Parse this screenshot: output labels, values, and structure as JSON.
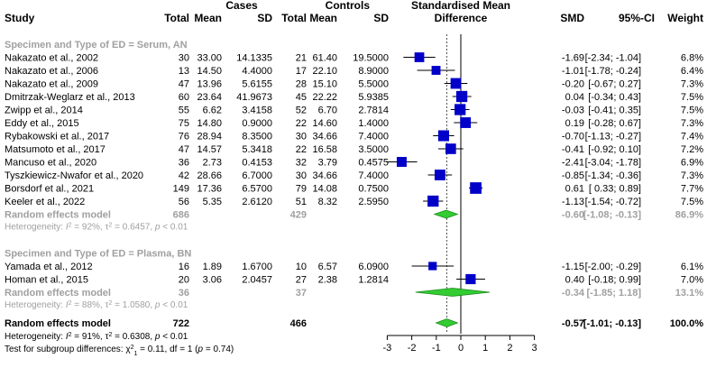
{
  "chart_data": {
    "type": "forest",
    "title": "",
    "xlim": [
      -3,
      3
    ],
    "xticks": [
      "-3",
      "-2",
      "-1",
      "0",
      "1",
      "2",
      "3"
    ],
    "overall_reference": -0.57,
    "header": {
      "cases": "Cases",
      "controls": "Controls",
      "smd_top": "Standardised Mean",
      "smd_bottom": "Difference",
      "study": "Study",
      "total": "Total",
      "mean": "Mean",
      "sd": "SD",
      "smd": "SMD",
      "ci": "95%-CI",
      "weight": "Weight"
    },
    "groups": [
      {
        "label": "Specimen and Type of ED = Serum, AN",
        "studies": [
          {
            "study": "Nakazato et al., 2002",
            "n1": "30",
            "m1": "33.00",
            "sd1": "14.1335",
            "n2": "21",
            "m2": "61.40",
            "sd2": "19.5000",
            "smd_text": "-1.69",
            "ci_text": "[-2.34; -1.04]",
            "weight": "6.8%",
            "smd": -1.69,
            "lo": -2.34,
            "hi": -1.04,
            "w": 6.8
          },
          {
            "study": "Nakazato et al., 2006",
            "n1": "13",
            "m1": "14.50",
            "sd1": "4.4000",
            "n2": "17",
            "m2": "22.10",
            "sd2": "8.9000",
            "smd_text": "-1.01",
            "ci_text": "[-1.78; -0.24]",
            "weight": "6.4%",
            "smd": -1.01,
            "lo": -1.78,
            "hi": -0.24,
            "w": 6.4
          },
          {
            "study": "Nakazato et al., 2009",
            "n1": "47",
            "m1": "13.96",
            "sd1": "5.6155",
            "n2": "28",
            "m2": "15.10",
            "sd2": "5.5000",
            "smd_text": "-0.20",
            "ci_text": "[-0.67; 0.27]",
            "weight": "7.3%",
            "smd": -0.2,
            "lo": -0.67,
            "hi": 0.27,
            "w": 7.3
          },
          {
            "study": "Dmitrzak-Weglarz et al., 2013",
            "n1": "60",
            "m1": "23.64",
            "sd1": "41.9673",
            "n2": "45",
            "m2": "22.22",
            "sd2": "5.9385",
            "smd_text": "0.04",
            "ci_text": "[-0.34; 0.43]",
            "weight": "7.5%",
            "smd": 0.04,
            "lo": -0.34,
            "hi": 0.43,
            "w": 7.5
          },
          {
            "study": "Zwipp et al., 2014",
            "n1": "55",
            "m1": "6.62",
            "sd1": "3.4158",
            "n2": "52",
            "m2": "6.70",
            "sd2": "2.7814",
            "smd_text": "-0.03",
            "ci_text": "[-0.41; 0.35]",
            "weight": "7.5%",
            "smd": -0.03,
            "lo": -0.41,
            "hi": 0.35,
            "w": 7.5
          },
          {
            "study": "Eddy et al., 2015",
            "n1": "75",
            "m1": "14.80",
            "sd1": "0.9000",
            "n2": "22",
            "m2": "14.60",
            "sd2": "1.4000",
            "smd_text": "0.19",
            "ci_text": "[-0.28; 0.67]",
            "weight": "7.3%",
            "smd": 0.19,
            "lo": -0.28,
            "hi": 0.67,
            "w": 7.3
          },
          {
            "study": "Rybakowski et al., 2017",
            "n1": "76",
            "m1": "28.94",
            "sd1": "8.3500",
            "n2": "30",
            "m2": "34.66",
            "sd2": "7.4000",
            "smd_text": "-0.70",
            "ci_text": "[-1.13; -0.27]",
            "weight": "7.4%",
            "smd": -0.7,
            "lo": -1.13,
            "hi": -0.27,
            "w": 7.4
          },
          {
            "study": "Matsumoto et al., 2017",
            "n1": "47",
            "m1": "14.57",
            "sd1": "5.3418",
            "n2": "22",
            "m2": "16.58",
            "sd2": "3.5000",
            "smd_text": "-0.41",
            "ci_text": "[-0.92; 0.10]",
            "weight": "7.2%",
            "smd": -0.41,
            "lo": -0.92,
            "hi": 0.1,
            "w": 7.2
          },
          {
            "study": "Mancuso et al., 2020",
            "n1": "36",
            "m1": "2.73",
            "sd1": "0.4153",
            "n2": "32",
            "m2": "3.79",
            "sd2": "0.4575",
            "smd_text": "-2.41",
            "ci_text": "[-3.04; -1.78]",
            "weight": "6.9%",
            "smd": -2.41,
            "lo": -3.04,
            "hi": -1.78,
            "w": 6.9
          },
          {
            "study": "Tyszkiewicz-Nwafor et al., 2020",
            "n1": "42",
            "m1": "28.66",
            "sd1": "6.7000",
            "n2": "30",
            "m2": "34.66",
            "sd2": "7.4000",
            "smd_text": "-0.85",
            "ci_text": "[-1.34; -0.36]",
            "weight": "7.3%",
            "smd": -0.85,
            "lo": -1.34,
            "hi": -0.36,
            "w": 7.3
          },
          {
            "study": "Borsdorf et al., 2021",
            "n1": "149",
            "m1": "17.36",
            "sd1": "6.5700",
            "n2": "79",
            "m2": "14.08",
            "sd2": "0.7500",
            "smd_text": "0.61",
            "ci_text": "[ 0.33; 0.89]",
            "weight": "7.7%",
            "smd": 0.61,
            "lo": 0.33,
            "hi": 0.89,
            "w": 7.7
          },
          {
            "study": "Keeler et al., 2022",
            "n1": "56",
            "m1": "5.35",
            "sd1": "2.6120",
            "n2": "51",
            "m2": "8.32",
            "sd2": "2.5950",
            "smd_text": "-1.13",
            "ci_text": "[-1.54; -0.72]",
            "weight": "7.5%",
            "smd": -1.13,
            "lo": -1.54,
            "hi": -0.72,
            "w": 7.5
          }
        ],
        "random": {
          "label": "Random effects model",
          "n1": "686",
          "n2": "429",
          "smd_text": "-0.60",
          "ci_text": "[-1.08; -0.13]",
          "weight": "86.9%",
          "smd": -0.6,
          "lo": -1.08,
          "hi": -0.13
        },
        "heterogeneity": {
          "prefix": "Heterogeneity: ",
          "i2": "92%",
          "tau2": "0.6457",
          "p": "< 0.01"
        }
      },
      {
        "label": "Specimen and Type of ED = Plasma, BN",
        "studies": [
          {
            "study": "Yamada et al., 2012",
            "n1": "16",
            "m1": "1.89",
            "sd1": "1.6700",
            "n2": "10",
            "m2": "6.57",
            "sd2": "6.0900",
            "smd_text": "-1.15",
            "ci_text": "[-2.00; -0.29]",
            "weight": "6.1%",
            "smd": -1.15,
            "lo": -2.0,
            "hi": -0.29,
            "w": 6.1
          },
          {
            "study": "Homan et al., 2015",
            "n1": "20",
            "m1": "3.06",
            "sd1": "2.0457",
            "n2": "27",
            "m2": "2.38",
            "sd2": "1.2814",
            "smd_text": "0.40",
            "ci_text": "[-0.18; 0.99]",
            "weight": "7.0%",
            "smd": 0.4,
            "lo": -0.18,
            "hi": 0.99,
            "w": 7.0
          }
        ],
        "random": {
          "label": "Random effects model",
          "n1": "36",
          "n2": "37",
          "smd_text": "-0.34",
          "ci_text": "[-1.85; 1.18]",
          "weight": "13.1%",
          "smd": -0.34,
          "lo": -1.85,
          "hi": 1.18
        },
        "heterogeneity": {
          "prefix": "Heterogeneity: ",
          "i2": "88%",
          "tau2": "1.0580",
          "p": "< 0.01"
        }
      }
    ],
    "overall": {
      "label": "Random effects model",
      "n1": "722",
      "n2": "466",
      "smd_text": "-0.57",
      "ci_text": "[-1.01; -0.13]",
      "weight": "100.0%",
      "smd": -0.57,
      "lo": -1.01,
      "hi": -0.13
    },
    "overall_heterogeneity": {
      "prefix": "Heterogeneity: ",
      "i2": "91%",
      "tau2": "0.6308",
      "p": "< 0.01"
    },
    "subgroup_test": {
      "prefix": "Test for subgroup differences: ",
      "chi2": "0.11",
      "df": "df = 1",
      "p": "0.74"
    },
    "colors": {
      "square": "#0000c8",
      "diamond_fill": "#33cc33",
      "diamond_stroke": "#1a8c1a",
      "grey_text": "#a0a0a0"
    }
  }
}
